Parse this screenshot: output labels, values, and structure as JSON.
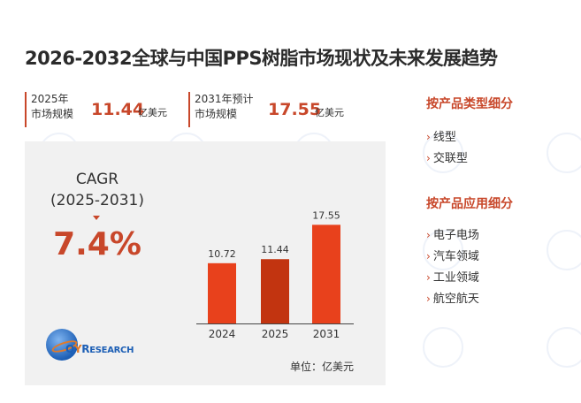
{
  "title": "2026-2032全球与中国PPS树脂市场现状及未来发展趋势",
  "stats": [
    {
      "line1": "2025年",
      "line2": "市场规模",
      "value": "11.44",
      "unit": "亿美元"
    },
    {
      "line1": "2031年预计",
      "line2": "市场规模",
      "value": "17.55",
      "unit": "亿美元"
    }
  ],
  "cagr": {
    "label": "CAGR",
    "period": "(2025-2031)",
    "value": "7.4%"
  },
  "brand": {
    "q": "Q",
    "y": "Y",
    "r": "R",
    "rest": "ESEARCH"
  },
  "unit_label": "单位：亿美元",
  "colors": {
    "accent": "#c8472a",
    "bar": "#e8411c",
    "bar_highlight": "#c23410",
    "panel": "#f1f1f1"
  },
  "sidebar": {
    "type_heading": "按产品类型细分",
    "type_items": [
      "线型",
      "交联型"
    ],
    "app_heading": "按产品应用细分",
    "app_items": [
      "电子电场",
      "汽车领域",
      "工业领域",
      "航空航天"
    ],
    "marker": "›"
  },
  "chart_data": {
    "type": "bar",
    "categories": [
      "2024",
      "2025",
      "2031"
    ],
    "values": [
      10.72,
      11.44,
      17.55
    ],
    "data_labels": [
      "10.72",
      "11.44",
      "17.55"
    ],
    "highlight_category": "2025",
    "unit": "亿美元",
    "ylim": [
      0,
      20
    ],
    "grid": false,
    "legend": "none"
  }
}
